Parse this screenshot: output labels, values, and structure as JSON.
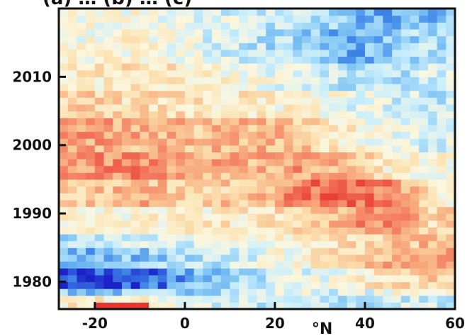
{
  "chart_data": {
    "type": "heatmap",
    "title_fragment": "(a) … (b) … (c)",
    "x_label": "°N",
    "x_range": [
      -28,
      60
    ],
    "y_range": [
      1976,
      2020
    ],
    "x_ticks": [
      -20,
      0,
      20,
      40,
      60
    ],
    "y_ticks": [
      1980,
      1990,
      2000,
      2010
    ],
    "grid": false,
    "colormap": {
      "description": "diverging blue-white-red",
      "colors": [
        "#1a22c8",
        "#3f86e8",
        "#7cc2f4",
        "#c9eefc",
        "#fbf7df",
        "#fbe1b0",
        "#f8ad80",
        "#f2705a",
        "#e8352f"
      ]
    },
    "value_scale": [
      -1,
      1
    ],
    "row_bands": [
      {
        "y0": 2017.5,
        "y1": 2020,
        "values": [
          0.05,
          0.0,
          -0.1,
          -0.2,
          -0.3,
          -0.5,
          -0.6,
          -0.5
        ]
      },
      {
        "y0": 2012.5,
        "y1": 2017.5,
        "values": [
          0.0,
          0.05,
          -0.1,
          -0.25,
          -0.35,
          -0.6,
          -0.5,
          -0.3
        ]
      },
      {
        "y0": 2008,
        "y1": 2012.5,
        "values": [
          0.1,
          0.2,
          0.15,
          0.0,
          -0.15,
          -0.3,
          -0.3,
          -0.2
        ]
      },
      {
        "y0": 2004,
        "y1": 2008,
        "values": [
          0.3,
          0.25,
          0.2,
          0.15,
          0.05,
          -0.1,
          -0.2,
          -0.25
        ]
      },
      {
        "y0": 1999,
        "y1": 2004,
        "values": [
          0.55,
          0.45,
          0.4,
          0.45,
          0.35,
          0.1,
          -0.1,
          -0.15
        ]
      },
      {
        "y0": 1995,
        "y1": 1999,
        "values": [
          0.6,
          0.65,
          0.5,
          0.45,
          0.55,
          0.45,
          0.1,
          0.05
        ]
      },
      {
        "y0": 1991,
        "y1": 1995,
        "values": [
          0.35,
          0.45,
          0.3,
          0.35,
          0.7,
          0.8,
          0.65,
          0.15
        ]
      },
      {
        "y0": 1987,
        "y1": 1991,
        "values": [
          0.1,
          0.05,
          0.1,
          0.15,
          0.25,
          0.55,
          0.7,
          0.25
        ]
      },
      {
        "y0": 1985,
        "y1": 1987,
        "values": [
          -0.3,
          -0.25,
          -0.15,
          0.0,
          0.1,
          0.25,
          0.35,
          0.4
        ]
      },
      {
        "y0": 1982,
        "y1": 1985,
        "values": [
          -0.55,
          -0.45,
          -0.35,
          -0.15,
          0.05,
          0.25,
          0.5,
          0.6
        ]
      },
      {
        "y0": 1979.5,
        "y1": 1982,
        "values": [
          -0.95,
          -0.85,
          -0.55,
          -0.3,
          -0.15,
          0.05,
          0.2,
          0.3
        ]
      },
      {
        "y0": 1978,
        "y1": 1979.5,
        "values": [
          -0.5,
          -0.45,
          -0.35,
          -0.2,
          -0.1,
          -0.15,
          -0.05,
          0.1
        ]
      },
      {
        "y0": 1976,
        "y1": 1978,
        "values": [
          0.15,
          0.05,
          -0.1,
          -0.25,
          -0.3,
          -0.35,
          -0.25,
          -0.2
        ]
      }
    ],
    "band_x_edges": [
      -28,
      -16,
      -4,
      8,
      20,
      32,
      41,
      50,
      60
    ],
    "bottom_strip": {
      "y0": 1976,
      "y1": 1976.9,
      "x0": -20,
      "x1": -8,
      "value": 1.0
    }
  }
}
